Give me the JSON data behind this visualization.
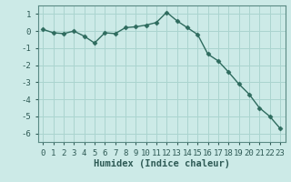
{
  "xlabel": "Humidex (Indice chaleur)",
  "x": [
    0,
    1,
    2,
    3,
    4,
    5,
    6,
    7,
    8,
    9,
    10,
    11,
    12,
    13,
    14,
    15,
    16,
    17,
    18,
    19,
    20,
    21,
    22,
    23
  ],
  "y": [
    0.1,
    -0.1,
    -0.15,
    0.0,
    -0.3,
    -0.7,
    -0.1,
    -0.15,
    0.2,
    0.25,
    0.35,
    0.5,
    1.1,
    0.6,
    0.2,
    -0.2,
    -1.35,
    -1.75,
    -2.4,
    -3.1,
    -3.7,
    -4.5,
    -5.0,
    -5.7
  ],
  "line_color": "#2e6b5e",
  "marker": "D",
  "marker_size": 2.5,
  "bg_color": "#cceae7",
  "grid_color": "#aad4cf",
  "ylim": [
    -6.5,
    1.5
  ],
  "xlim": [
    -0.5,
    23.5
  ],
  "yticks": [
    1,
    0,
    -1,
    -2,
    -3,
    -4,
    -5,
    -6
  ],
  "xticks": [
    0,
    1,
    2,
    3,
    4,
    5,
    6,
    7,
    8,
    9,
    10,
    11,
    12,
    13,
    14,
    15,
    16,
    17,
    18,
    19,
    20,
    21,
    22,
    23
  ],
  "xlabel_fontsize": 7.5,
  "tick_fontsize": 6.5,
  "line_width": 1.0,
  "spine_color": "#5a8a84"
}
